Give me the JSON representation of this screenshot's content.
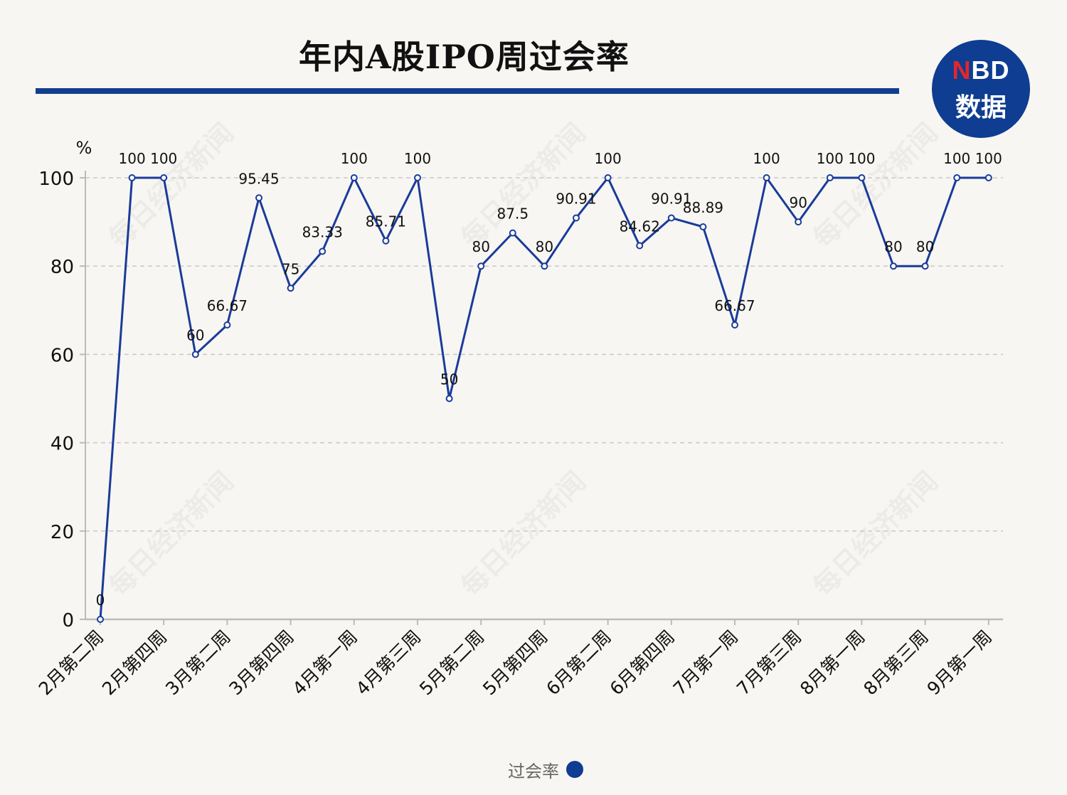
{
  "header": {
    "title": "年内A股IPO周过会率"
  },
  "logo": {
    "line1_n": "N",
    "line1_rest": "BD",
    "line2": "数据"
  },
  "watermark": "每日经济新闻",
  "colors": {
    "line": "#1a3b9b",
    "rule": "#123e8f",
    "logo": "#0e3d91",
    "grid": "#c8c8c8"
  },
  "chart_data": {
    "type": "line",
    "title": "年内A股IPO周过会率",
    "ylabel": "%",
    "xlabel": "",
    "ylim": [
      0,
      100
    ],
    "yticks": [
      0,
      20,
      40,
      60,
      80,
      100
    ],
    "grid": "horizontal-dashed",
    "legend_position": "bottom",
    "x_tick_labels": [
      "2月第二周",
      "2月第四周",
      "3月第二周",
      "3月第四周",
      "4月第一周",
      "4月第三周",
      "5月第二周",
      "5月第四周",
      "6月第二周",
      "6月第四周",
      "7月第一周",
      "7月第三周",
      "8月第一周",
      "8月第三周",
      "9月第一周"
    ],
    "x_tick_indices": [
      0,
      2,
      4,
      6,
      8,
      10,
      12,
      14,
      16,
      18,
      20,
      22,
      24,
      26,
      28
    ],
    "series": [
      {
        "name": "过会率",
        "values": [
          0,
          100,
          100,
          60,
          66.67,
          95.45,
          75,
          83.33,
          100,
          85.71,
          100,
          50,
          80,
          87.5,
          80,
          90.91,
          100,
          84.62,
          90.91,
          88.89,
          66.67,
          100,
          90,
          100,
          100,
          80,
          80,
          100,
          100
        ],
        "labels": [
          "0",
          "100",
          "100",
          "60",
          "66.67",
          "95.45",
          "75",
          "83.33",
          "100",
          "85.71",
          "100",
          "50",
          "80",
          "87.5",
          "80",
          "90.91",
          "100",
          "84.62",
          "90.91",
          "88.89",
          "66.67",
          "100",
          "90",
          "100",
          "100",
          "80",
          "80",
          "100",
          "100"
        ]
      }
    ]
  }
}
